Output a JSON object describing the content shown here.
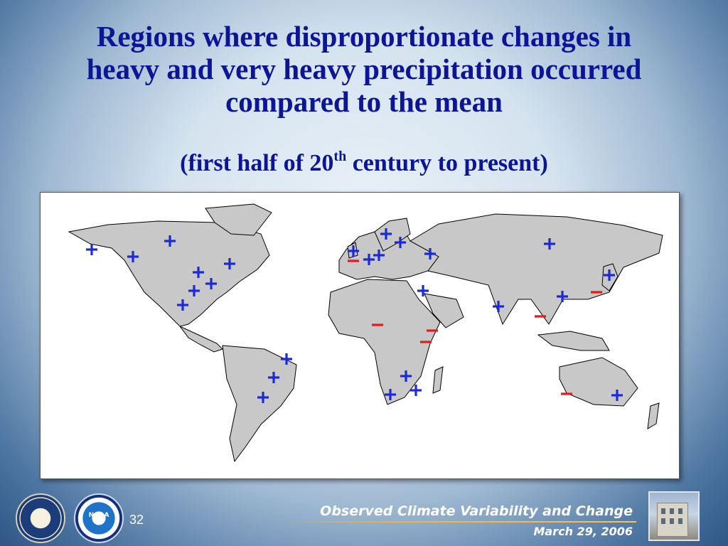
{
  "slide": {
    "title_lines": [
      "Regions where disproportionate changes in",
      "heavy and very heavy precipitation occurred",
      "compared to the mean"
    ],
    "subtitle_pre": "(first half of 20",
    "subtitle_sup": "th",
    "subtitle_post": " century to present)",
    "page_number": "32"
  },
  "footer": {
    "title": "Observed Climate Variability and Change",
    "date": "March 29, 2006",
    "logos": {
      "left": "seal-icon",
      "middle_label": "NOAA",
      "right": "building-icon"
    }
  },
  "map": {
    "land_color": "#c8c8c8",
    "increase_color": "#1a2ad8",
    "decrease_color": "#e01c1c",
    "markers": [
      {
        "sign": "+",
        "region": "alaska"
      },
      {
        "sign": "+",
        "region": "northwest-canada"
      },
      {
        "sign": "+",
        "region": "northern-canada"
      },
      {
        "sign": "+",
        "region": "eastern-canada"
      },
      {
        "sign": "+",
        "region": "central-usa"
      },
      {
        "sign": "+",
        "region": "eastern-usa"
      },
      {
        "sign": "+",
        "region": "southern-usa"
      },
      {
        "sign": "+",
        "region": "mexico"
      },
      {
        "sign": "+",
        "region": "scandinavia-north"
      },
      {
        "sign": "+",
        "region": "scandinavia-east"
      },
      {
        "sign": "+",
        "region": "british-isles"
      },
      {
        "sign": "-",
        "region": "british-isles-south"
      },
      {
        "sign": "+",
        "region": "western-europe"
      },
      {
        "sign": "+",
        "region": "central-europe"
      },
      {
        "sign": "+",
        "region": "western-russia"
      },
      {
        "sign": "+",
        "region": "siberia"
      },
      {
        "sign": "+",
        "region": "eastern-mediterranean"
      },
      {
        "sign": "+",
        "region": "india"
      },
      {
        "sign": "+",
        "region": "china"
      },
      {
        "sign": "+",
        "region": "japan"
      },
      {
        "sign": "-",
        "region": "japan-south"
      },
      {
        "sign": "-",
        "region": "southeast-asia"
      },
      {
        "sign": "-",
        "region": "west-africa"
      },
      {
        "sign": "-",
        "region": "east-africa"
      },
      {
        "sign": "-",
        "region": "east-africa-south"
      },
      {
        "sign": "+",
        "region": "southern-africa-north"
      },
      {
        "sign": "+",
        "region": "southern-africa-east"
      },
      {
        "sign": "+",
        "region": "southern-africa-west"
      },
      {
        "sign": "+",
        "region": "eastern-brazil"
      },
      {
        "sign": "+",
        "region": "southern-brazil"
      },
      {
        "sign": "+",
        "region": "argentina"
      },
      {
        "sign": "-",
        "region": "western-australia"
      },
      {
        "sign": "+",
        "region": "eastern-australia"
      }
    ]
  }
}
